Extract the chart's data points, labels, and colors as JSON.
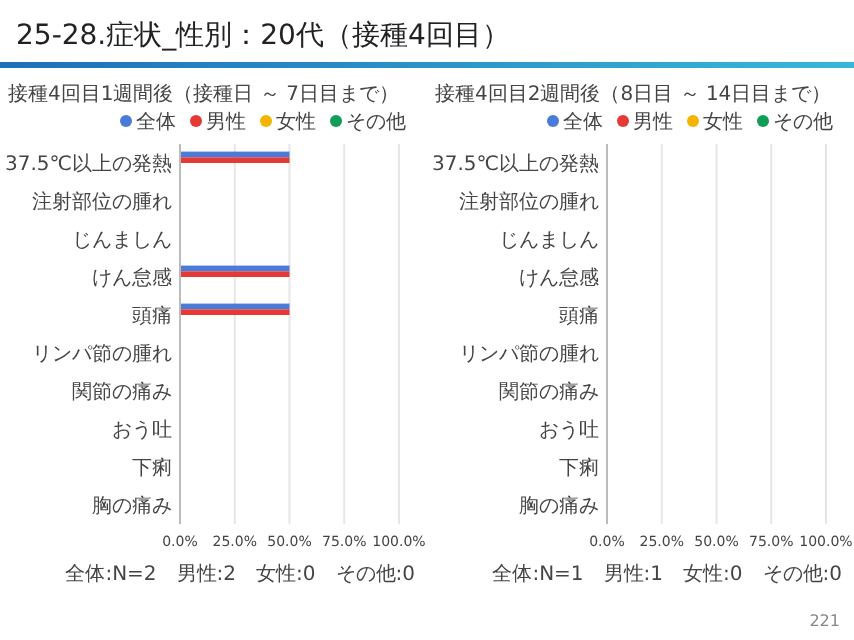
{
  "chart_data": [
    {
      "type": "bar",
      "orientation": "horizontal",
      "title": "25-28.症状_性別：20代（接種4回目）",
      "subtitle": "接種4回目1週間後（接種日 ～ 7日目まで）",
      "categories": [
        "37.5℃以上の発熱",
        "注射部位の腫れ",
        "じんましん",
        "けん怠感",
        "頭痛",
        "リンパ節の腫れ",
        "関節の痛み",
        "おう吐",
        "下痢",
        "胸の痛み"
      ],
      "series": [
        {
          "name": "全体",
          "color": "#4a7bd8",
          "values": [
            50,
            0,
            0,
            50,
            50,
            0,
            0,
            0,
            0,
            0
          ]
        },
        {
          "name": "男性",
          "color": "#e53935",
          "values": [
            50,
            0,
            0,
            50,
            50,
            0,
            0,
            0,
            0,
            0
          ]
        },
        {
          "name": "女性",
          "color": "#f4b400",
          "values": [
            0,
            0,
            0,
            0,
            0,
            0,
            0,
            0,
            0,
            0
          ]
        },
        {
          "name": "その他",
          "color": "#0f9d58",
          "values": [
            0,
            0,
            0,
            0,
            0,
            0,
            0,
            0,
            0,
            0
          ]
        }
      ],
      "xlim": [
        0,
        100
      ],
      "xticks": [
        {
          "value": 0,
          "label": "0.0%"
        },
        {
          "value": 25,
          "label": "25.0%"
        },
        {
          "value": 50,
          "label": "50.0%"
        },
        {
          "value": 75,
          "label": "75.0%"
        },
        {
          "value": 100,
          "label": "100.0%"
        }
      ],
      "grid": "x",
      "legend": "top",
      "annotations": [
        "全体:N=2　男性:2　女性:0　その他:0"
      ]
    },
    {
      "type": "bar",
      "orientation": "horizontal",
      "title": "接種4回目2週間後（8日目 ～ 14日目まで）",
      "categories": [
        "37.5℃以上の発熱",
        "注射部位の腫れ",
        "じんましん",
        "けん怠感",
        "頭痛",
        "リンパ節の腫れ",
        "関節の痛み",
        "おう吐",
        "下痢",
        "胸の痛み"
      ],
      "series": [
        {
          "name": "全体",
          "color": "#4a7bd8",
          "values": [
            0,
            0,
            0,
            0,
            0,
            0,
            0,
            0,
            0,
            0
          ]
        },
        {
          "name": "男性",
          "color": "#e53935",
          "values": [
            0,
            0,
            0,
            0,
            0,
            0,
            0,
            0,
            0,
            0
          ]
        },
        {
          "name": "女性",
          "color": "#f4b400",
          "values": [
            0,
            0,
            0,
            0,
            0,
            0,
            0,
            0,
            0,
            0
          ]
        },
        {
          "name": "その他",
          "color": "#0f9d58",
          "values": [
            0,
            0,
            0,
            0,
            0,
            0,
            0,
            0,
            0,
            0
          ]
        }
      ],
      "xlim": [
        0,
        100
      ],
      "xticks": [
        {
          "value": 0,
          "label": "0.0%"
        },
        {
          "value": 25,
          "label": "25.0%"
        },
        {
          "value": 50,
          "label": "50.0%"
        },
        {
          "value": 75,
          "label": "75.0%"
        },
        {
          "value": 100,
          "label": "100.0%"
        }
      ],
      "grid": "x",
      "legend": "top",
      "annotations": [
        "全体:N=1　男性:1　女性:0　その他:0",
        "221"
      ]
    }
  ]
}
